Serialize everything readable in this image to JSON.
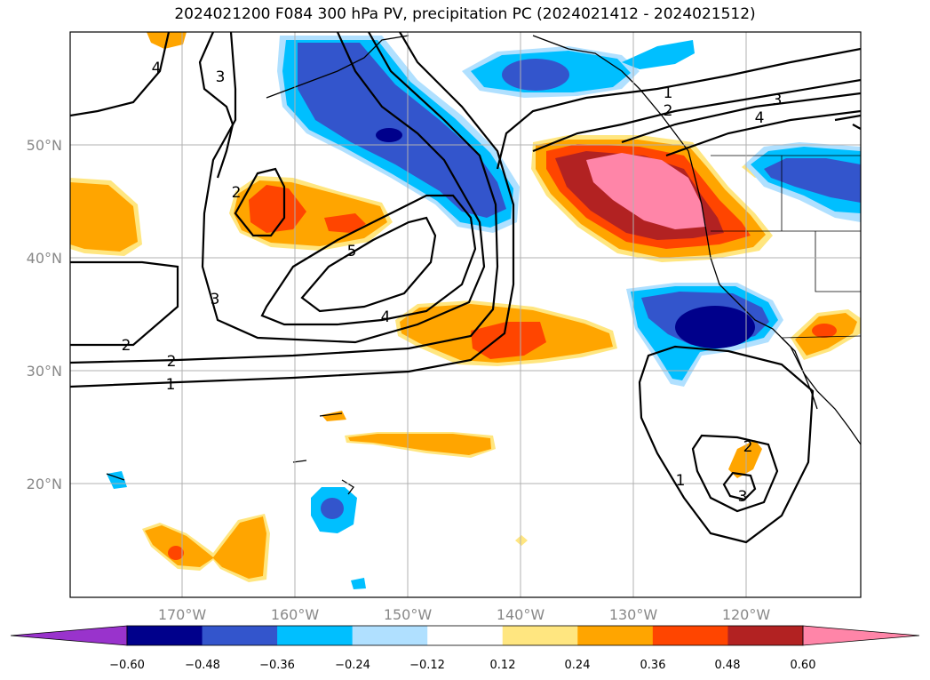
{
  "title": "2024021200 F084 300 hPa PV, precipitation PC (2024021412 - 2024021512)",
  "axes": {
    "lat_labels": [
      "50°N",
      "40°N",
      "30°N",
      "20°N"
    ],
    "lon_labels": [
      "170°W",
      "160°W",
      "150°W",
      "140°W",
      "130°W",
      "120°W"
    ]
  },
  "colorbar": {
    "ticks": [
      "−0.60",
      "−0.48",
      "−0.36",
      "−0.24",
      "−0.12",
      "0.12",
      "0.24",
      "0.36",
      "0.48",
      "0.60"
    ],
    "colors": [
      "#9933cc",
      "#00008b",
      "#3355cc",
      "#00bfff",
      "#b0e0ff",
      "#ffffff",
      "#ffe680",
      "#ffa500",
      "#ff4500",
      "#b22222",
      "#ff85a8"
    ]
  },
  "contour_labels": [
    {
      "text": "4"
    },
    {
      "text": "3"
    },
    {
      "text": "2"
    },
    {
      "text": "5"
    },
    {
      "text": "3"
    },
    {
      "text": "4"
    },
    {
      "text": "2"
    },
    {
      "text": "2"
    },
    {
      "text": "1"
    },
    {
      "text": "1"
    },
    {
      "text": "2"
    },
    {
      "text": "3"
    },
    {
      "text": "4"
    },
    {
      "text": "2"
    },
    {
      "text": "1"
    },
    {
      "text": "3"
    }
  ]
}
